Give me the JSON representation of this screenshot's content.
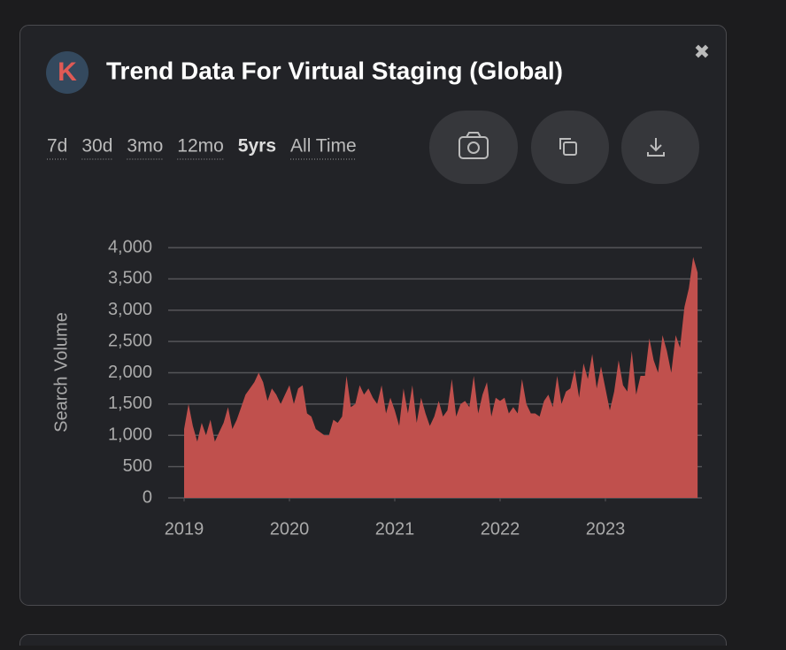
{
  "header": {
    "logo": "K",
    "title": "Trend Data For Virtual Staging (Global)",
    "close": "✖"
  },
  "ranges": [
    "7d",
    "30d",
    "3mo",
    "12mo",
    "5yrs",
    "All Time"
  ],
  "selected_range": 4,
  "chart_data": {
    "type": "area",
    "color": "#c0504d",
    "ylabel": "Search Volume",
    "grid": true,
    "xlim": [
      2019,
      2024
    ],
    "xticks": [
      2019,
      2020,
      2021,
      2022,
      2023
    ],
    "ylim": [
      0,
      4000
    ],
    "yticks": [
      0,
      500,
      {
        "value": 1000,
        "label": "1,000"
      },
      {
        "value": 1500,
        "label": "1,500"
      },
      {
        "value": 2000,
        "label": "2,000"
      },
      {
        "value": 2500,
        "label": "2,500"
      },
      {
        "value": 3000,
        "label": "3,000"
      },
      {
        "value": 3500,
        "label": "3,500"
      },
      {
        "value": 4000,
        "label": "4,000"
      }
    ],
    "x": [
      2019,
      2019.042,
      2019.083,
      2019.125,
      2019.167,
      2019.208,
      2019.25,
      2019.292,
      2019.333,
      2019.375,
      2019.417,
      2019.458,
      2019.5,
      2019.542,
      2019.583,
      2019.625,
      2019.667,
      2019.708,
      2019.75,
      2019.792,
      2019.833,
      2019.875,
      2019.917,
      2019.958,
      2020,
      2020.042,
      2020.083,
      2020.125,
      2020.167,
      2020.208,
      2020.25,
      2020.292,
      2020.333,
      2020.375,
      2020.417,
      2020.458,
      2020.5,
      2020.542,
      2020.583,
      2020.625,
      2020.667,
      2020.708,
      2020.75,
      2020.792,
      2020.833,
      2020.875,
      2020.917,
      2020.958,
      2021,
      2021.042,
      2021.083,
      2021.125,
      2021.167,
      2021.208,
      2021.25,
      2021.292,
      2021.333,
      2021.375,
      2021.417,
      2021.458,
      2021.5,
      2021.542,
      2021.583,
      2021.625,
      2021.667,
      2021.708,
      2021.75,
      2021.792,
      2021.833,
      2021.875,
      2021.917,
      2021.958,
      2022,
      2022.042,
      2022.083,
      2022.125,
      2022.167,
      2022.208,
      2022.25,
      2022.292,
      2022.333,
      2022.375,
      2022.417,
      2022.458,
      2022.5,
      2022.542,
      2022.583,
      2022.625,
      2022.667,
      2022.708,
      2022.75,
      2022.792,
      2022.833,
      2022.875,
      2022.917,
      2022.958,
      2023,
      2023.042,
      2023.083,
      2023.125,
      2023.167,
      2023.208,
      2023.25,
      2023.292,
      2023.333,
      2023.375,
      2023.417,
      2023.458,
      2023.5,
      2023.542,
      2023.583,
      2023.625,
      2023.667,
      2023.708,
      2023.75,
      2023.792,
      2023.833,
      2023.875
    ],
    "values": [
      1100,
      1500,
      1150,
      900,
      1200,
      1000,
      1250,
      900,
      1050,
      1200,
      1450,
      1100,
      1250,
      1450,
      1650,
      1750,
      1850,
      2000,
      1850,
      1550,
      1750,
      1650,
      1500,
      1650,
      1800,
      1500,
      1750,
      1800,
      1350,
      1300,
      1100,
      1050,
      1000,
      1000,
      1250,
      1200,
      1300,
      1950,
      1450,
      1500,
      1800,
      1650,
      1750,
      1600,
      1500,
      1800,
      1350,
      1600,
      1400,
      1150,
      1750,
      1350,
      1800,
      1200,
      1600,
      1350,
      1150,
      1300,
      1550,
      1300,
      1400,
      1900,
      1300,
      1500,
      1550,
      1450,
      1950,
      1350,
      1650,
      1850,
      1300,
      1600,
      1550,
      1600,
      1350,
      1450,
      1350,
      1900,
      1500,
      1350,
      1350,
      1300,
      1550,
      1650,
      1450,
      1950,
      1500,
      1700,
      1750,
      2050,
      1600,
      2150,
      1900,
      2300,
      1750,
      2100,
      1750,
      1400,
      1700,
      2200,
      1800,
      1700,
      2350,
      1650,
      1950,
      1950,
      2550,
      2200,
      2000,
      2600,
      2350,
      2000,
      2600,
      2400,
      3050,
      3350,
      3850,
      3600
    ]
  }
}
